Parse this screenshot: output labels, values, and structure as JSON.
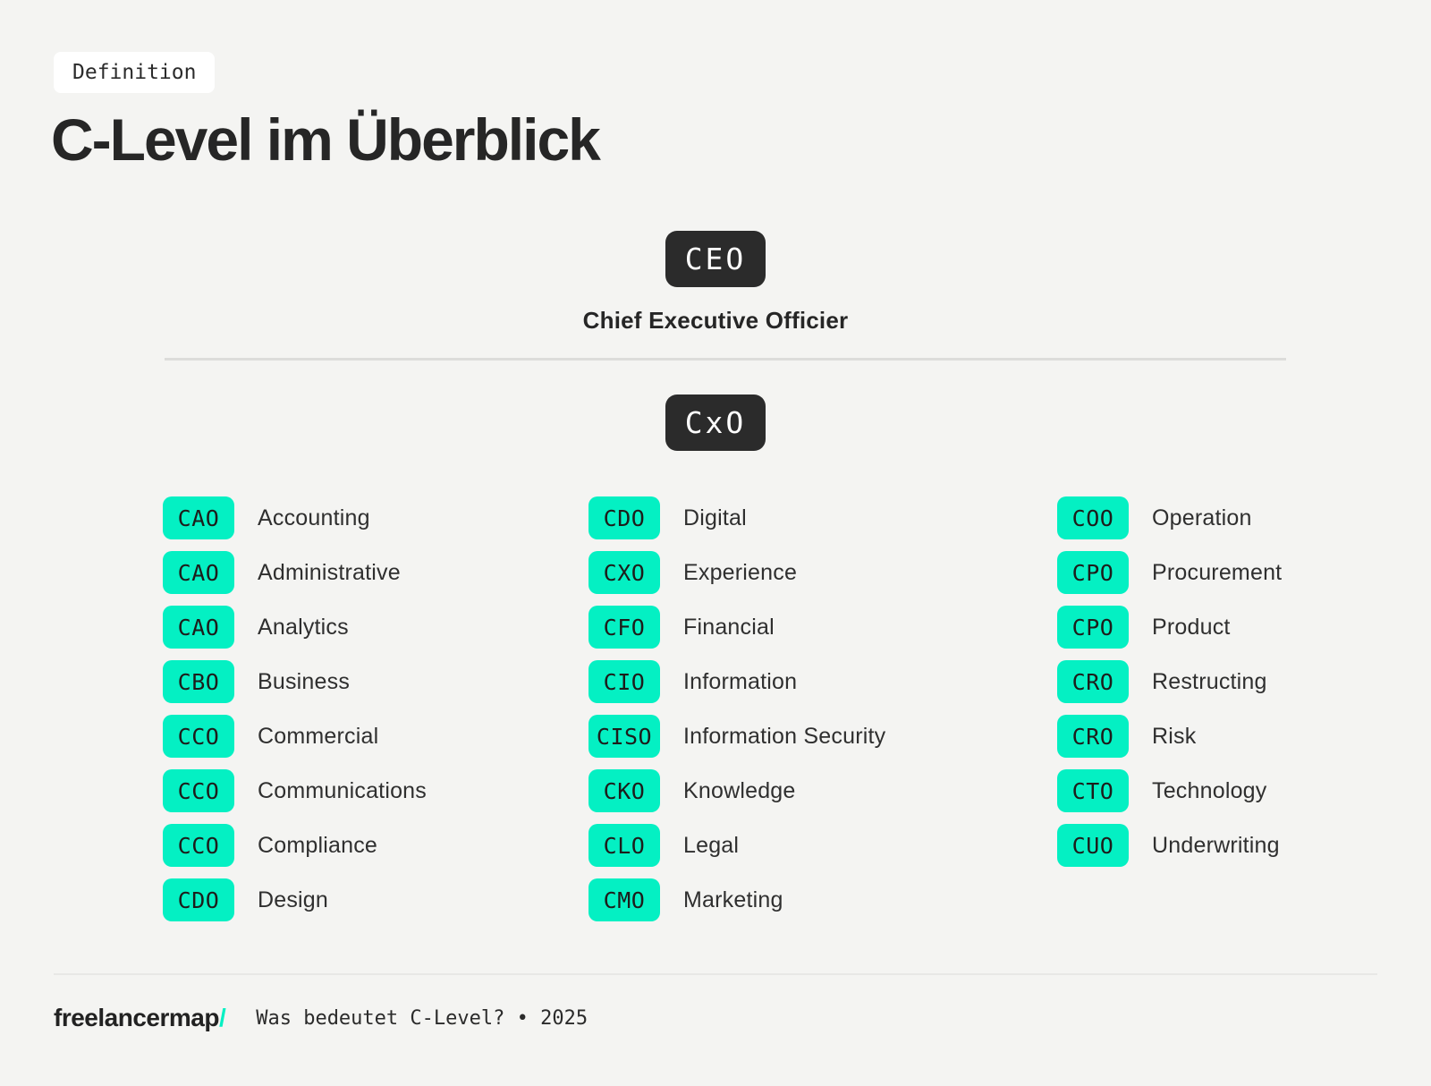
{
  "colors": {
    "background": "#f4f4f2",
    "dark_badge": "#2b2b2b",
    "mint_badge": "#04f0c3",
    "text": "#2f2f2f"
  },
  "header": {
    "tag": "Definition",
    "title": "C-Level im Überblick"
  },
  "ceo": {
    "acronym": "CEO",
    "title": "Chief Executive Officier"
  },
  "cxo": {
    "acronym": "CxO"
  },
  "columns": [
    {
      "items": [
        {
          "acronym": "CAO",
          "label": "Accounting"
        },
        {
          "acronym": "CAO",
          "label": "Administrative"
        },
        {
          "acronym": "CAO",
          "label": "Analytics"
        },
        {
          "acronym": "CBO",
          "label": "Business"
        },
        {
          "acronym": "CCO",
          "label": "Commercial"
        },
        {
          "acronym": "CCO",
          "label": "Communications"
        },
        {
          "acronym": "CCO",
          "label": "Compliance"
        },
        {
          "acronym": "CDO",
          "label": "Design"
        }
      ]
    },
    {
      "items": [
        {
          "acronym": "CDO",
          "label": "Digital"
        },
        {
          "acronym": "CXO",
          "label": "Experience"
        },
        {
          "acronym": "CFO",
          "label": "Financial"
        },
        {
          "acronym": "CIO",
          "label": "Information"
        },
        {
          "acronym": "CISO",
          "label": "Information Security"
        },
        {
          "acronym": "CKO",
          "label": "Knowledge"
        },
        {
          "acronym": "CLO",
          "label": "Legal"
        },
        {
          "acronym": "CMO",
          "label": "Marketing"
        }
      ]
    },
    {
      "items": [
        {
          "acronym": "COO",
          "label": "Operation"
        },
        {
          "acronym": "CPO",
          "label": "Procurement"
        },
        {
          "acronym": "CPO",
          "label": "Product"
        },
        {
          "acronym": "CRO",
          "label": "Restructing"
        },
        {
          "acronym": "CRO",
          "label": "Risk"
        },
        {
          "acronym": "CTO",
          "label": "Technology"
        },
        {
          "acronym": "CUO",
          "label": "Underwriting"
        }
      ]
    }
  ],
  "footer": {
    "brand": "freelancermap",
    "brand_slash": "/",
    "caption": "Was bedeutet C-Level? • 2025"
  }
}
